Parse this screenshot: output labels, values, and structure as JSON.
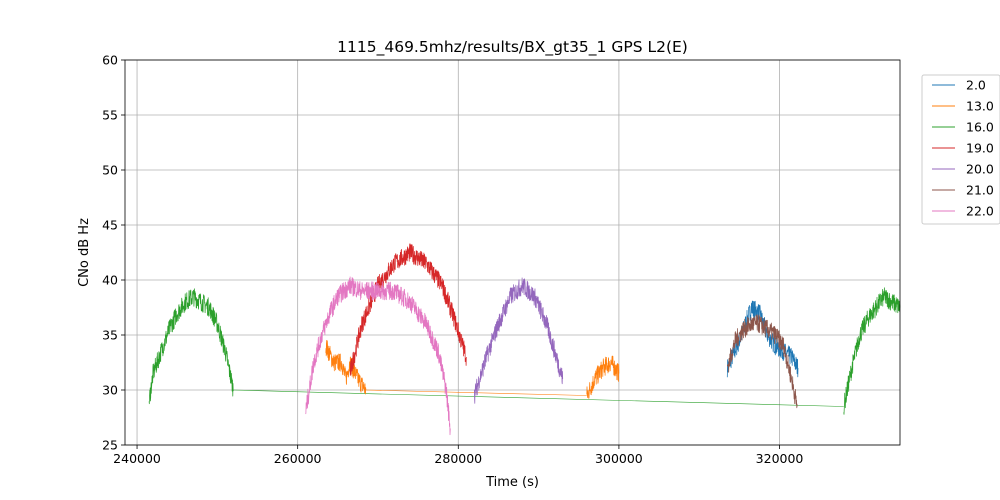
{
  "chart_data": {
    "type": "line",
    "title": "1115_469.5mhz/results/BX_gt35_1 GPS L2(E)",
    "xlabel": "Time (s)",
    "ylabel": "CNo dB Hz",
    "xlim": [
      238500,
      335000
    ],
    "ylim": [
      25,
      60
    ],
    "xticks": [
      240000,
      260000,
      280000,
      300000,
      320000
    ],
    "xtick_labels": [
      "240000",
      "260000",
      "280000",
      "300000",
      "320000"
    ],
    "yticks": [
      25,
      30,
      35,
      40,
      45,
      50,
      55,
      60
    ],
    "ytick_labels": [
      "25",
      "30",
      "35",
      "40",
      "45",
      "50",
      "55",
      "60"
    ],
    "grid": true,
    "legend_position": "outside-right",
    "series": [
      {
        "name": "2.0",
        "color": "#1f77b4",
        "x": [
          313500,
          315000,
          316500,
          317500,
          318500,
          319500,
          320500,
          321500,
          322300
        ],
        "y": [
          32,
          34.5,
          37.5,
          37,
          35,
          34,
          33.5,
          33,
          32
        ]
      },
      {
        "name": "13.0",
        "color": "#ff7f0e",
        "x": [
          263500,
          264500,
          265500,
          266000,
          266500,
          267500,
          268500,
          296000,
          297000,
          298000,
          299000,
          300000
        ],
        "y": [
          34,
          32.5,
          32.5,
          31,
          32.5,
          31,
          30,
          29.5,
          31,
          32,
          32.5,
          31.5
        ]
      },
      {
        "name": "16.0",
        "color": "#2ca02c",
        "x": [
          241500,
          242000,
          243000,
          244000,
          245000,
          246000,
          247000,
          248000,
          249000,
          250000,
          251000,
          252000,
          328000,
          329000,
          330000,
          331000,
          332000,
          333000,
          334000,
          335000
        ],
        "y": [
          29,
          31.5,
          33.5,
          35.5,
          37,
          38,
          38.5,
          38,
          37.5,
          36,
          33.5,
          30,
          28.5,
          32,
          35,
          36.5,
          37.5,
          38.5,
          38,
          37.5
        ]
      },
      {
        "name": "19.0",
        "color": "#d62728",
        "x": [
          266500,
          268000,
          270000,
          272000,
          274000,
          276000,
          278000,
          279500,
          281000
        ],
        "y": [
          31.5,
          36,
          39.5,
          41.5,
          42.5,
          41.5,
          39.5,
          36.5,
          33
        ]
      },
      {
        "name": "20.0",
        "color": "#9467bd",
        "x": [
          282000,
          283500,
          285000,
          286500,
          288000,
          289500,
          291000,
          292000,
          293000
        ],
        "y": [
          29.5,
          33,
          36,
          38.5,
          39.5,
          38.5,
          36,
          33.5,
          31
        ]
      },
      {
        "name": "21.0",
        "color": "#8c564b",
        "x": [
          313500,
          314500,
          315500,
          316500,
          317500,
          318500,
          319500,
          320500,
          321500,
          322200
        ],
        "y": [
          32,
          34.5,
          35.5,
          36,
          36,
          35.5,
          35,
          34,
          31,
          28.5
        ]
      },
      {
        "name": "22.0",
        "color": "#e377c2",
        "x": [
          261000,
          262000,
          263000,
          264000,
          265000,
          266500,
          268000,
          270000,
          272000,
          274000,
          276000,
          277500,
          278500,
          279000
        ],
        "y": [
          28,
          32.5,
          35,
          37,
          38.5,
          39.5,
          39,
          39,
          39,
          38,
          36,
          33.5,
          30,
          26.5
        ]
      }
    ]
  }
}
